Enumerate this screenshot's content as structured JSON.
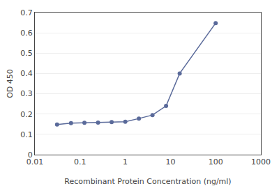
{
  "chart_data": {
    "type": "line",
    "xlabel": "Recombinant Protein Concentration (ng/ml)",
    "ylabel": "OD 450",
    "x": [
      0.031,
      0.063,
      0.125,
      0.25,
      0.5,
      1.0,
      2.0,
      4.0,
      8.0,
      16.0,
      100.0
    ],
    "values": [
      0.148,
      0.155,
      0.157,
      0.158,
      0.16,
      0.162,
      0.178,
      0.195,
      0.24,
      0.4,
      0.648
    ],
    "color": "#5a6a9a",
    "marker": "circle",
    "log": "x",
    "xlim": [
      0.01,
      1000
    ],
    "xticks": [
      0.01,
      0.1,
      1,
      10,
      100,
      1000
    ],
    "ylim": [
      0,
      0.7
    ],
    "yticks": [
      0,
      0.1,
      0.2,
      0.3,
      0.4,
      0.5,
      0.6,
      0.7
    ],
    "grid": "y"
  }
}
